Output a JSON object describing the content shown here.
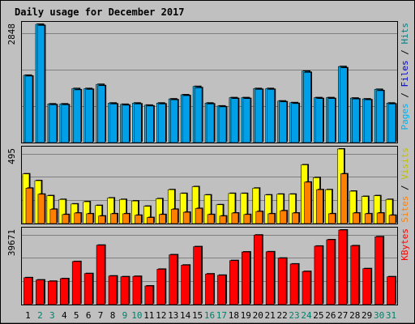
{
  "chart_data": {
    "type": "bar",
    "title": "Daily usage for December 2017",
    "categories": [
      "1",
      "2",
      "3",
      "4",
      "5",
      "6",
      "7",
      "8",
      "9",
      "10",
      "11",
      "12",
      "13",
      "14",
      "15",
      "16",
      "17",
      "18",
      "19",
      "20",
      "21",
      "22",
      "23",
      "24",
      "25",
      "26",
      "27",
      "28",
      "29",
      "30",
      "31"
    ],
    "weekend_days": [
      "2",
      "3",
      "9",
      "10",
      "16",
      "17",
      "23",
      "24",
      "30",
      "31"
    ],
    "colors": {
      "background": "#c0c0c0",
      "panel": "#c0c0c0",
      "title": "#0000cc",
      "hits": "#00bfff",
      "files": "#0080ff",
      "pages": "#00b0f0",
      "visits": "#ffff00",
      "sites": "#ff8000",
      "kbytes": "#ff0000",
      "weekend_text": "#00806a",
      "weekday_text": "#000000",
      "grid": "#808080"
    },
    "panels": [
      {
        "id": "hits-files-pages",
        "ymax_label": "2848",
        "ymax": 2848,
        "right_label": [
          {
            "text": "Pages",
            "color": "#00b0f0"
          },
          {
            "text": " / ",
            "color": "#000000"
          },
          {
            "text": "Files",
            "color": "#0000cc"
          },
          {
            "text": " / ",
            "color": "#000000"
          },
          {
            "text": "Hits",
            "color": "#008080"
          }
        ],
        "series": [
          {
            "name": "Hits",
            "color": "#00bfff",
            "values": [
              1620,
              2848,
              930,
              930,
              1300,
              1300,
              1400,
              950,
              920,
              950,
              900,
              950,
              1050,
              1150,
              1350,
              950,
              880,
              1080,
              1080,
              1300,
              1300,
              1000,
              960,
              1720,
              1080,
              1080,
              1830,
              1070,
              1050,
              1280,
              950
            ]
          },
          {
            "name": "Files",
            "color": "#00a0e8",
            "values": [
              1600,
              2820,
              910,
              910,
              1270,
              1280,
              1370,
              930,
              900,
              930,
              880,
              930,
              1030,
              1130,
              1320,
              930,
              860,
              1060,
              1060,
              1280,
              1280,
              980,
              940,
              1690,
              1060,
              1060,
              1800,
              1050,
              1030,
              1250,
              930
            ]
          }
        ]
      },
      {
        "id": "visits-sites",
        "ymax_label": "495",
        "ymax": 495,
        "right_label": [
          {
            "text": "Sites",
            "color": "#ff8000"
          },
          {
            "text": " / ",
            "color": "#000000"
          },
          {
            "text": "Visits",
            "color": "#c0c000"
          }
        ],
        "series": [
          {
            "name": "Visits",
            "color": "#ffff00",
            "values": [
              330,
              285,
              185,
              160,
              130,
              145,
              120,
              170,
              160,
              150,
              115,
              165,
              225,
              200,
              245,
              190,
              125,
              200,
              200,
              235,
              190,
              195,
              195,
              390,
              305,
              225,
              495,
              215,
              180,
              185,
              160
            ]
          },
          {
            "name": "Sites",
            "color": "#ff8000",
            "values": [
              235,
              195,
              95,
              60,
              70,
              65,
              50,
              65,
              65,
              55,
              40,
              60,
              95,
              75,
              100,
              60,
              50,
              70,
              60,
              80,
              65,
              85,
              70,
              275,
              225,
              65,
              330,
              70,
              65,
              70,
              55
            ]
          }
        ]
      },
      {
        "id": "kbytes",
        "ymax_label": "39671",
        "ymax": 39671,
        "right_label": [
          {
            "text": "KBytes",
            "color": "#ff0000"
          }
        ],
        "series": [
          {
            "name": "KBytes",
            "color": "#ff0000",
            "values": [
              14300,
              13100,
              12400,
              13800,
              22900,
              16500,
              31600,
              15200,
              14800,
              15000,
              9900,
              18800,
              26500,
              21000,
              30800,
              16300,
              15600,
              23400,
              28000,
              37000,
              28100,
              24700,
              21600,
              17600,
              31100,
              34500,
              39671,
              31300,
              19100,
              36100,
              14800
            ]
          }
        ]
      }
    ]
  }
}
